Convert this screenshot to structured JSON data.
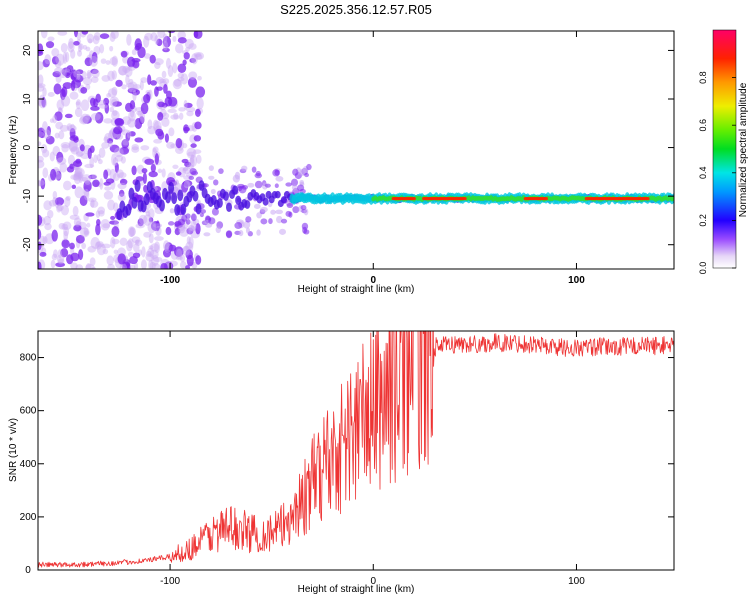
{
  "figure": {
    "title": "S225.2025.356.12.57.R05"
  },
  "chart_data": [
    {
      "type": "heatmap",
      "xlabel": "Height of straight line (km)",
      "ylabel": "Frequency (Hz)",
      "xlim": [
        -165,
        148
      ],
      "ylim": [
        -25,
        24
      ],
      "xticks": [
        -100,
        0,
        100
      ],
      "yticks": [
        -20,
        -10,
        0,
        10,
        20
      ],
      "colorbar": {
        "label": "Normalized spectral amplitude",
        "range": [
          0.0,
          1.0
        ],
        "ticks": [
          0.0,
          0.2,
          0.4,
          0.6,
          0.8
        ]
      },
      "features": {
        "carrier_frequency_hz": -10.5,
        "carrier_peak_amplitude": 0.85,
        "noise_dominated_below_km": -100,
        "transition_range_km": [
          -100,
          -30
        ]
      }
    },
    {
      "type": "line",
      "xlabel": "Height of straight line (km)",
      "ylabel": "SNR (10 * v/v)",
      "xlim": [
        -165,
        148
      ],
      "ylim": [
        0,
        900
      ],
      "xticks": [
        -100,
        0,
        100
      ],
      "yticks": [
        0,
        200,
        400,
        600,
        800
      ],
      "series": [
        {
          "color": "#ee3333",
          "x": [
            -165,
            -150,
            -140,
            -130,
            -120,
            -110,
            -100,
            -95,
            -90,
            -85,
            -80,
            -75,
            -70,
            -65,
            -60,
            -55,
            -50,
            -45,
            -40,
            -35,
            -30,
            -25,
            -20,
            -15,
            -10,
            -5,
            0,
            5,
            10,
            15,
            20,
            25,
            30,
            40,
            50,
            60,
            70,
            80,
            90,
            100,
            110,
            120,
            130,
            140,
            148
          ],
          "y": [
            20,
            20,
            22,
            25,
            30,
            38,
            50,
            65,
            80,
            110,
            135,
            150,
            160,
            150,
            140,
            135,
            140,
            160,
            210,
            260,
            320,
            400,
            430,
            470,
            520,
            570,
            600,
            650,
            700,
            760,
            800,
            820,
            840,
            850,
            850,
            855,
            855,
            850,
            840,
            835,
            840,
            840,
            845,
            845,
            850
          ]
        }
      ]
    }
  ]
}
